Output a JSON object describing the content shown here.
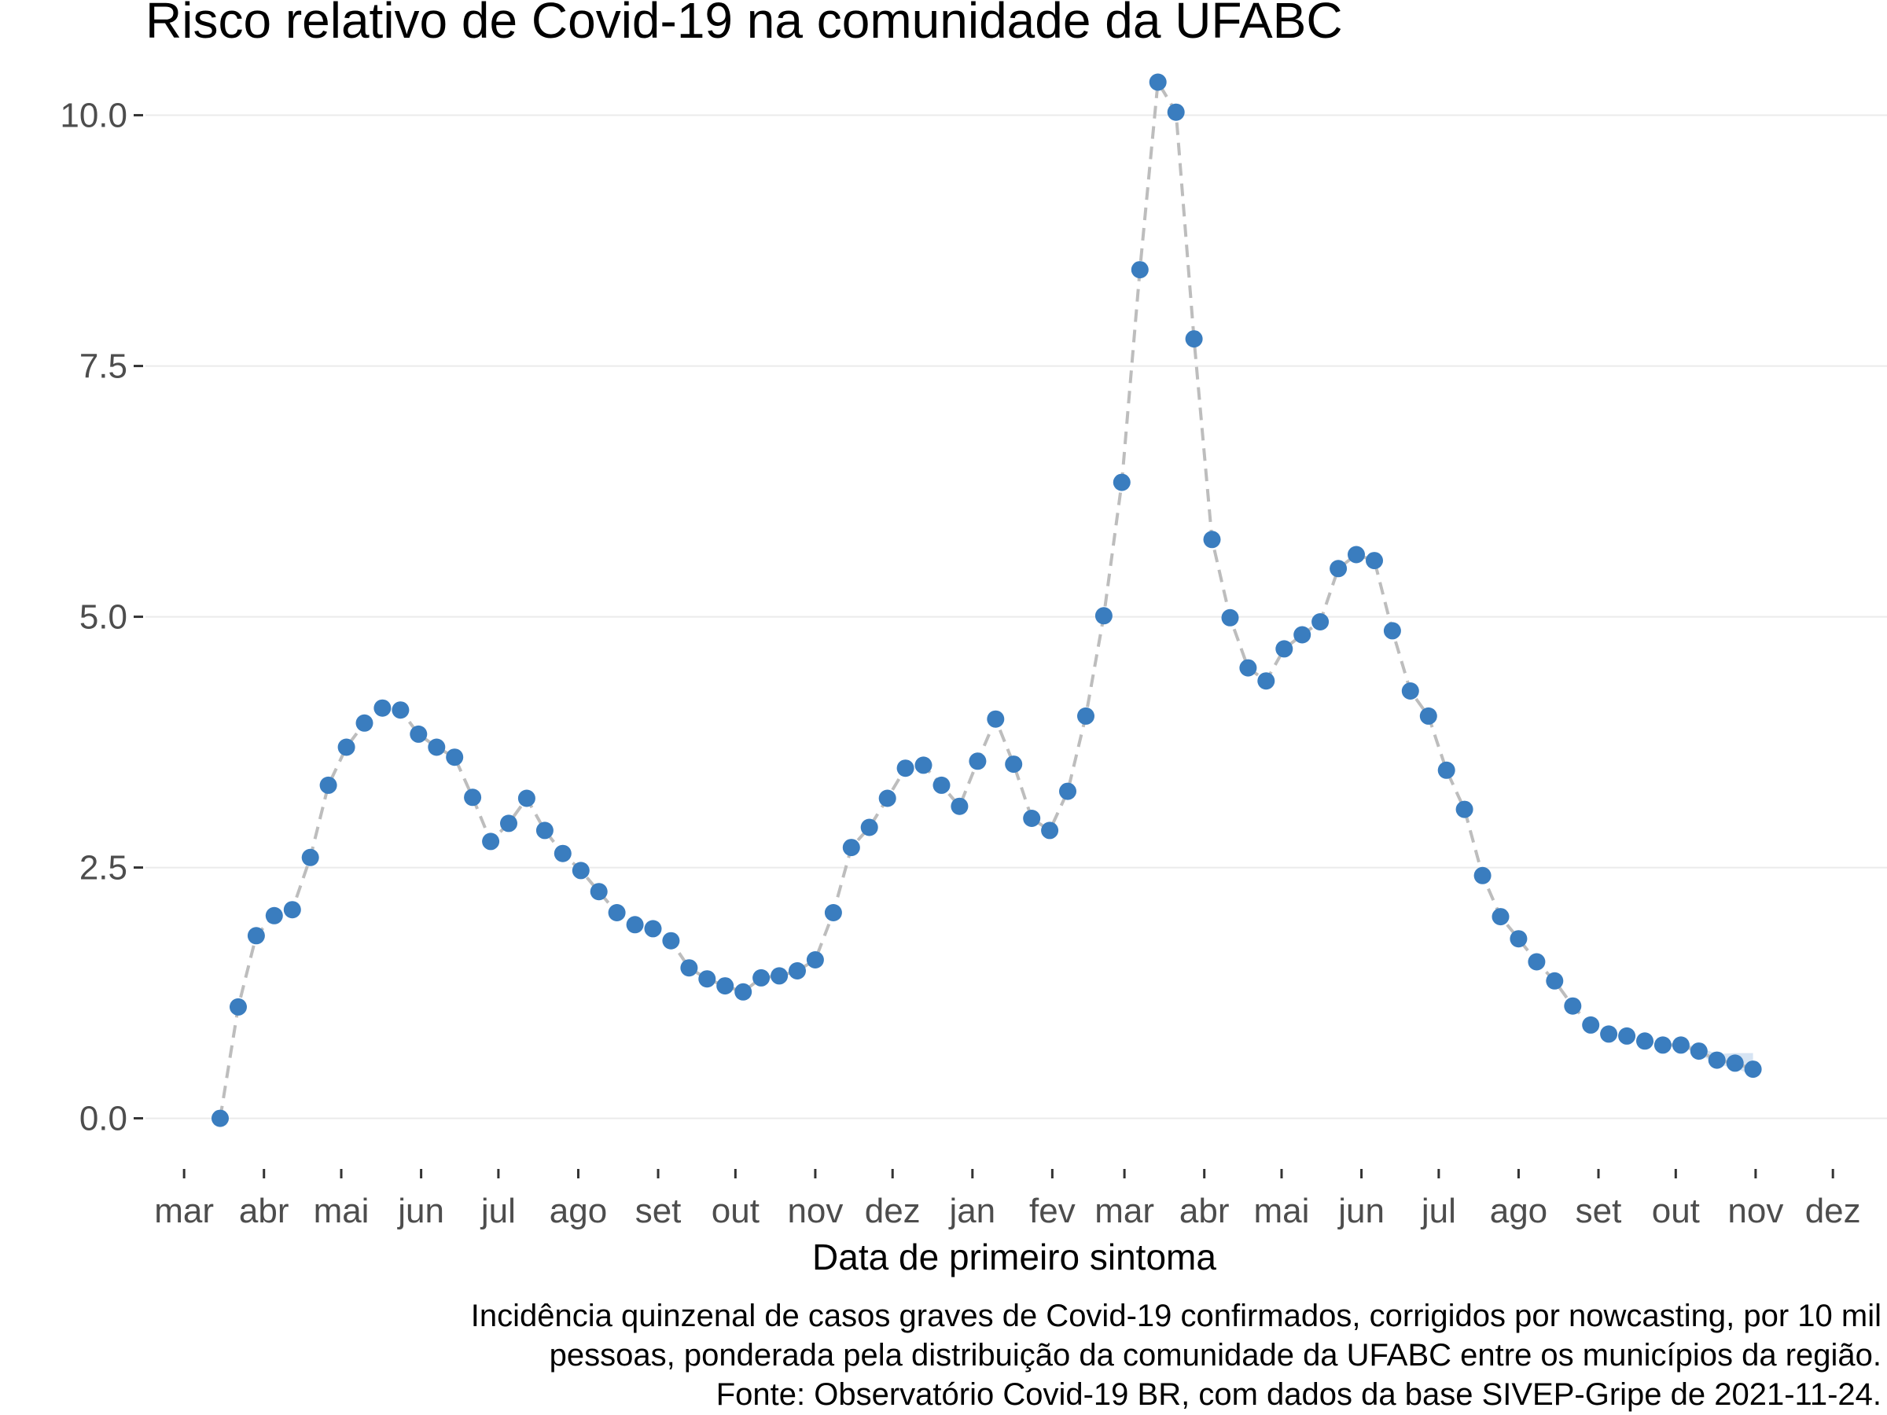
{
  "chart_data": {
    "type": "scatter",
    "title": "Risco relativo de Covid-19 na comunidade da UFABC",
    "xlabel": "Data de primeiro sintoma",
    "ylabel": "",
    "ylim": [
      -0.45,
      10.6
    ],
    "yticks": [
      {
        "value": 0.0,
        "label": "0.0"
      },
      {
        "value": 2.5,
        "label": "2.5"
      },
      {
        "value": 5.0,
        "label": "5.0"
      },
      {
        "value": 7.5,
        "label": "7.5"
      },
      {
        "value": 10.0,
        "label": "10.0"
      }
    ],
    "xlim": [
      "2020-02-15",
      "2021-12-22"
    ],
    "xticks": [
      {
        "date": "2020-03-01",
        "label": "mar"
      },
      {
        "date": "2020-04-01",
        "label": "abr"
      },
      {
        "date": "2020-05-01",
        "label": "mai"
      },
      {
        "date": "2020-06-01",
        "label": "jun"
      },
      {
        "date": "2020-07-01",
        "label": "jul"
      },
      {
        "date": "2020-08-01",
        "label": "ago"
      },
      {
        "date": "2020-09-01",
        "label": "set"
      },
      {
        "date": "2020-10-01",
        "label": "out"
      },
      {
        "date": "2020-11-01",
        "label": "nov"
      },
      {
        "date": "2020-12-01",
        "label": "dez"
      },
      {
        "date": "2021-01-01",
        "label": "jan"
      },
      {
        "date": "2021-02-01",
        "label": "fev"
      },
      {
        "date": "2021-03-01",
        "label": "mar"
      },
      {
        "date": "2021-04-01",
        "label": "abr"
      },
      {
        "date": "2021-05-01",
        "label": "mai"
      },
      {
        "date": "2021-06-01",
        "label": "jun"
      },
      {
        "date": "2021-07-01",
        "label": "jul"
      },
      {
        "date": "2021-08-01",
        "label": "ago"
      },
      {
        "date": "2021-09-01",
        "label": "set"
      },
      {
        "date": "2021-10-01",
        "label": "out"
      },
      {
        "date": "2021-11-01",
        "label": "nov"
      },
      {
        "date": "2021-12-01",
        "label": "dez"
      }
    ],
    "grid": true,
    "legend": "none",
    "colors": {
      "points": "#3a7dbf",
      "line": "#bdbdbd",
      "band": "#d6e4f3",
      "grid": "#ebebeb",
      "tick_text": "#4d4d4d"
    },
    "x": [
      "2020-03-15",
      "2020-03-22",
      "2020-03-29",
      "2020-04-05",
      "2020-04-12",
      "2020-04-19",
      "2020-04-26",
      "2020-05-03",
      "2020-05-10",
      "2020-05-17",
      "2020-05-24",
      "2020-05-31",
      "2020-06-07",
      "2020-06-14",
      "2020-06-21",
      "2020-06-28",
      "2020-07-05",
      "2020-07-12",
      "2020-07-19",
      "2020-07-26",
      "2020-08-02",
      "2020-08-09",
      "2020-08-16",
      "2020-08-23",
      "2020-08-30",
      "2020-09-06",
      "2020-09-13",
      "2020-09-20",
      "2020-09-27",
      "2020-10-04",
      "2020-10-11",
      "2020-10-18",
      "2020-10-25",
      "2020-11-01",
      "2020-11-08",
      "2020-11-15",
      "2020-11-22",
      "2020-11-29",
      "2020-12-06",
      "2020-12-13",
      "2020-12-20",
      "2020-12-27",
      "2021-01-03",
      "2021-01-10",
      "2021-01-17",
      "2021-01-24",
      "2021-01-31",
      "2021-02-07",
      "2021-02-14",
      "2021-02-21",
      "2021-02-28",
      "2021-03-07",
      "2021-03-14",
      "2021-03-21",
      "2021-03-28",
      "2021-04-04",
      "2021-04-11",
      "2021-04-18",
      "2021-04-25",
      "2021-05-02",
      "2021-05-09",
      "2021-05-16",
      "2021-05-23",
      "2021-05-30",
      "2021-06-06",
      "2021-06-13",
      "2021-06-20",
      "2021-06-27",
      "2021-07-04",
      "2021-07-11",
      "2021-07-18",
      "2021-07-25",
      "2021-08-01",
      "2021-08-08",
      "2021-08-15",
      "2021-08-22",
      "2021-08-29",
      "2021-09-05",
      "2021-09-12",
      "2021-09-19",
      "2021-09-26",
      "2021-10-03",
      "2021-10-10",
      "2021-10-17",
      "2021-10-24",
      "2021-10-31"
    ],
    "series": [
      {
        "values": [
          0.0,
          1.11,
          1.82,
          2.02,
          2.08,
          2.6,
          3.32,
          3.7,
          3.94,
          4.09,
          4.07,
          3.83,
          3.7,
          3.6,
          3.2,
          2.76,
          2.94,
          3.19,
          2.87,
          2.64,
          2.47,
          2.26,
          2.05,
          1.93,
          1.89,
          1.77,
          1.5,
          1.39,
          1.32,
          1.26,
          1.4,
          1.42,
          1.47,
          1.58,
          2.05,
          2.7,
          2.9,
          3.19,
          3.49,
          3.52,
          3.32,
          3.11,
          3.56,
          3.98,
          3.53,
          2.99,
          2.87,
          3.26,
          4.01,
          5.01,
          6.34,
          8.46,
          10.33,
          10.03,
          7.77,
          5.77,
          4.99,
          4.49,
          4.36,
          4.68,
          4.82,
          4.95,
          5.48,
          5.62,
          5.56,
          4.86,
          4.26,
          4.01,
          3.47,
          3.08,
          2.42,
          2.01,
          1.79,
          1.56,
          1.37,
          1.12,
          0.93,
          0.84,
          0.82,
          0.77,
          0.73,
          0.73,
          0.67,
          0.58,
          0.55,
          0.49
        ]
      }
    ]
  },
  "caption": {
    "lines": [
      "Incidência quinzenal de casos graves de Covid-19 confirmados, corrigidos por nowcasting, por 10 mil",
      "pessoas, ponderada pela distribuição da comunidade da UFABC entre os municípios da região.",
      "Fonte: Observatório Covid-19 BR, com dados da base SIVEP-Gripe de 2021-11-24."
    ]
  }
}
